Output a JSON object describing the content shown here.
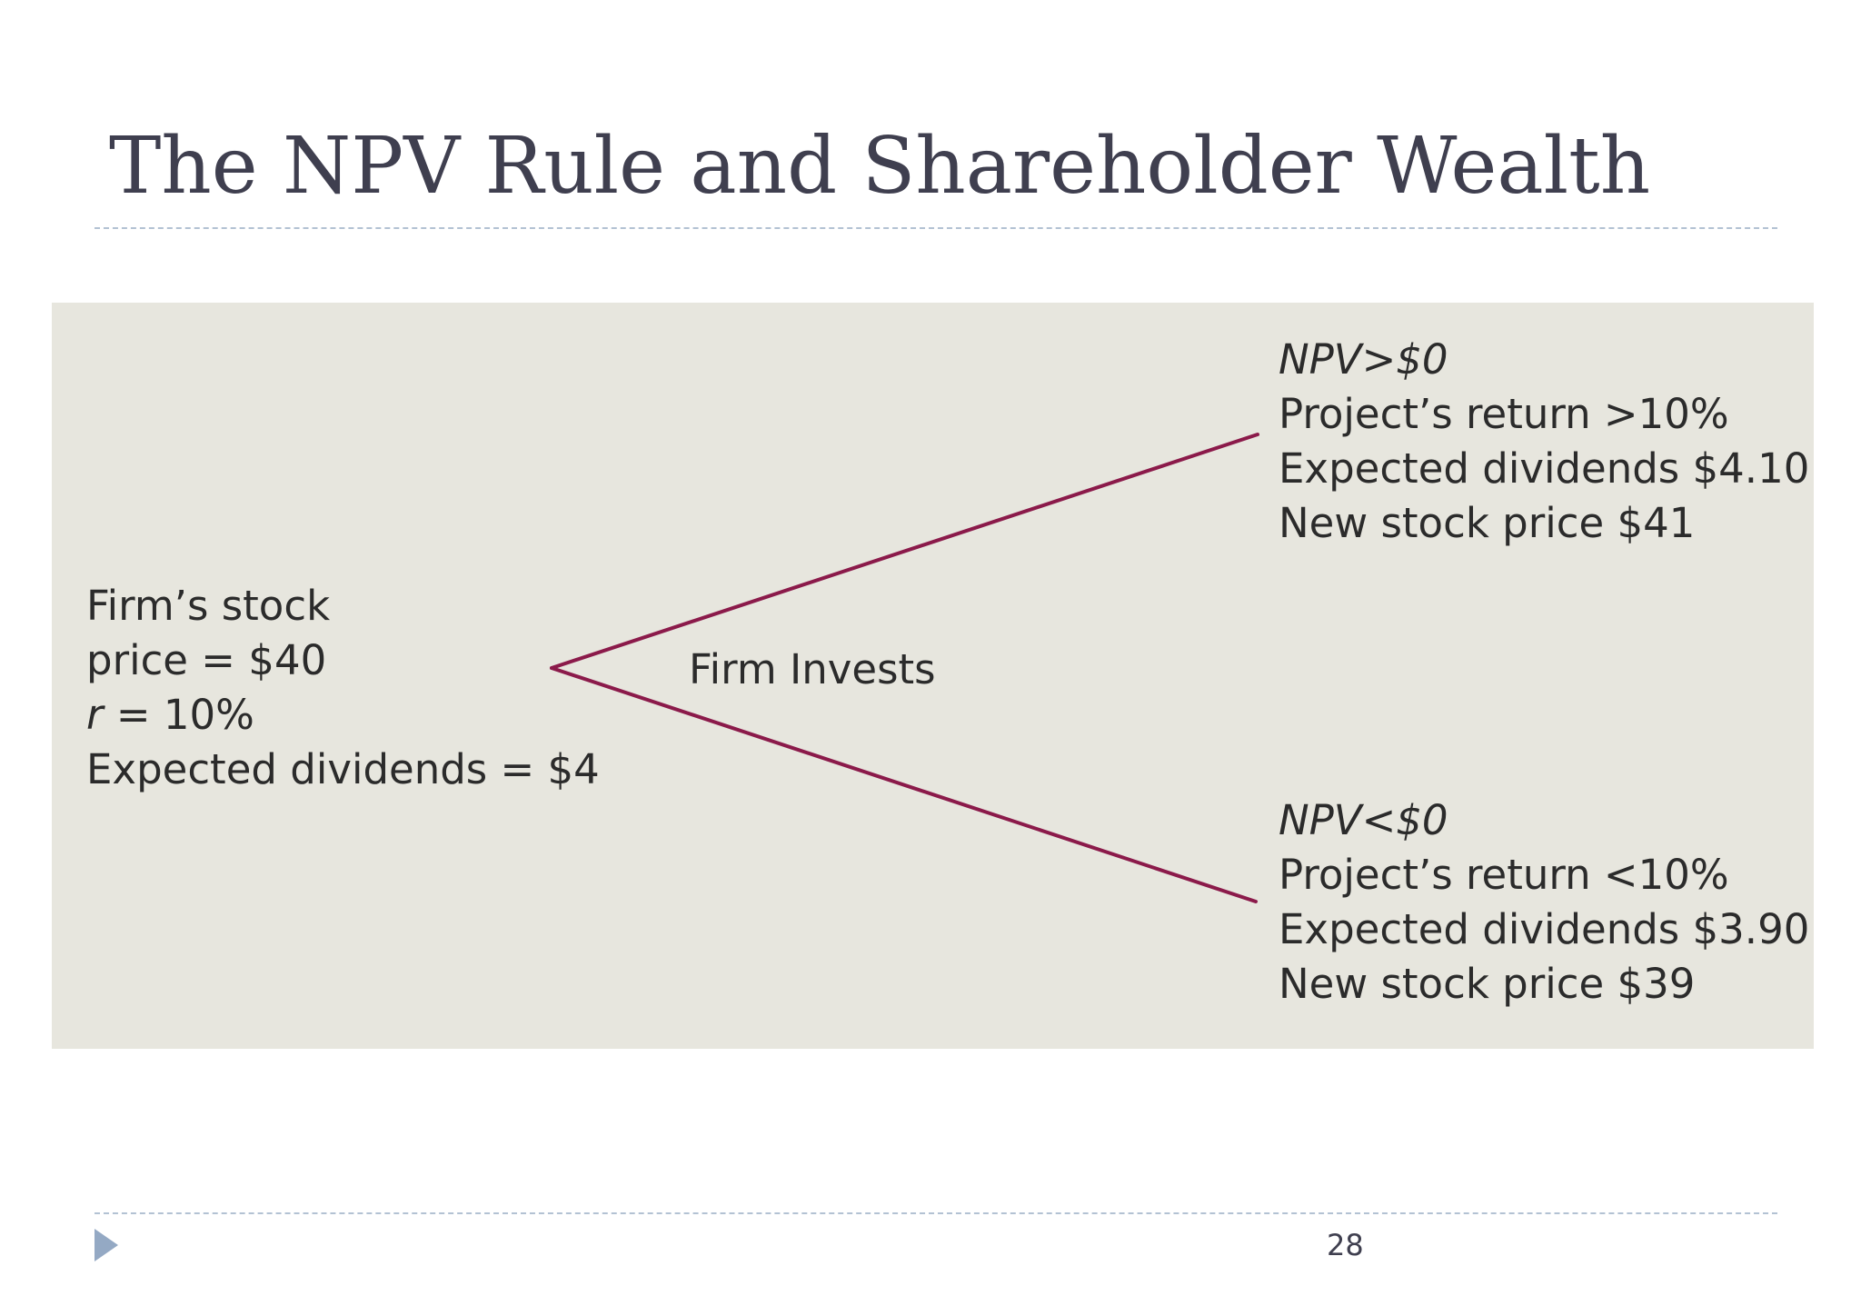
{
  "title": "The NPV Rule and Shareholder Wealth",
  "colors": {
    "panel_background": "#e7e6de",
    "branch_line": "#8b1a4a",
    "title_text": "#3f3f4f",
    "rule": "#b3c2d3"
  },
  "diagram": {
    "start": {
      "line1": "Firm’s stock",
      "line2": "price = $40",
      "line3_var": "r",
      "line3_rest": " = 10%",
      "line4": "Expected dividends = $4"
    },
    "center_label": "Firm Invests",
    "upper": {
      "condition": "NPV>$0",
      "return": "Project’s return >10%",
      "dividends": "Expected dividends $4.10",
      "price": "New stock price $41"
    },
    "lower": {
      "condition": "NPV<$0",
      "return": "Project’s return <10%",
      "dividends": "Expected dividends $3.90",
      "price": "New stock price $39"
    }
  },
  "footer": {
    "page_number": "28",
    "arrow_icon": "triangle-right-icon"
  }
}
